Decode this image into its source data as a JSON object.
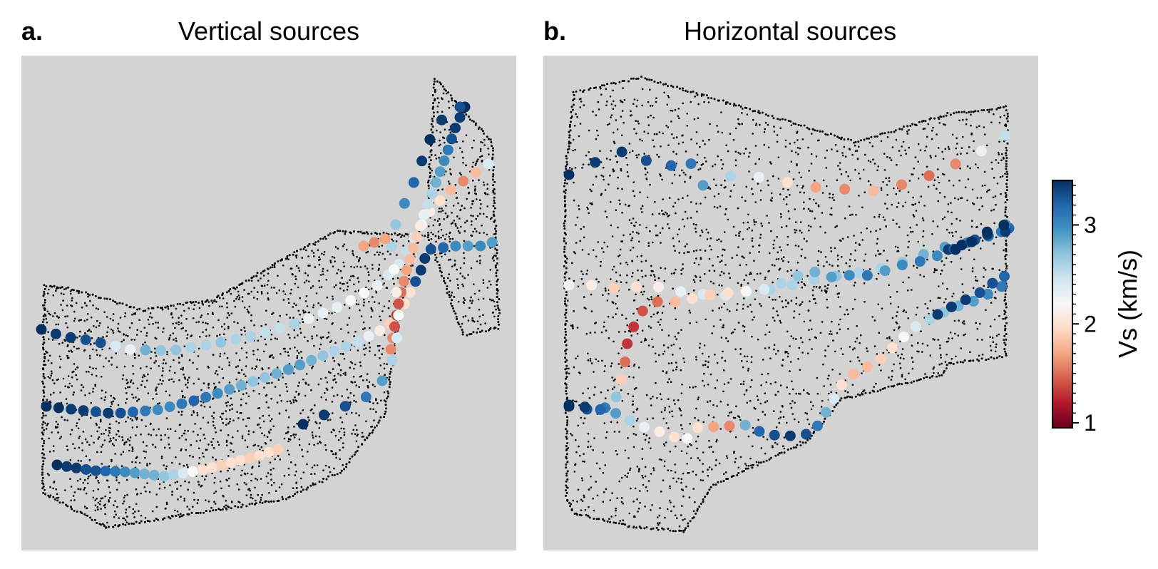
{
  "chart_data": [
    {
      "type": "scatter",
      "panel_label": "a.",
      "title": "Vertical sources",
      "background": "#d3d3d3",
      "station_color": "#000000",
      "colorbar": {
        "label": "Vs (km/s)",
        "cmap": "RdBu",
        "range": [
          0.95,
          3.45
        ],
        "ticks": [
          1,
          2,
          3
        ]
      },
      "series": [
        {
          "vs": [
            3.5,
            3.4,
            3.4,
            3.3,
            3.3,
            2.4,
            2.3,
            2.8,
            2.7,
            2.7,
            2.6,
            2.6,
            2.7,
            2.6,
            2.6,
            2.5,
            2.5,
            2.6,
            2.3,
            2.3,
            2.3,
            2.2,
            2.2,
            2.3,
            2.4,
            2.4,
            2.5,
            2.4,
            2.2,
            2.1,
            2.0,
            1.8,
            1.6,
            1.8,
            2.4
          ]
        },
        {
          "vs": [
            3.5,
            3.5,
            3.4,
            3.4,
            3.3,
            3.4,
            3.3,
            3.2,
            3.1,
            3.0,
            3.0,
            3.1,
            3.2,
            3.1,
            3.0,
            2.9,
            2.8,
            2.7,
            2.7,
            2.8,
            2.9,
            2.9,
            2.8,
            2.7,
            2.6,
            2.6,
            2.5,
            2.3,
            2.1,
            1.9,
            1.8,
            2.0,
            2.0,
            3.3,
            3.4,
            3.4,
            3.3,
            3.2,
            3.0,
            2.9,
            3.0,
            2.9
          ]
        },
        {
          "vs": [
            3.5,
            3.4,
            3.4,
            3.3,
            3.3,
            3.2,
            3.1,
            3.0,
            2.9,
            2.8,
            2.8,
            2.7,
            2.6,
            2.4,
            2.2,
            2.0,
            2.0,
            1.9,
            2.0,
            2.0,
            1.9,
            2.0,
            2.0,
            1.9
          ]
        },
        {
          "vs": [
            1.6,
            1.6,
            1.4,
            1.3,
            1.4,
            1.5,
            1.6,
            1.7,
            1.8,
            1.8,
            1.9,
            2.1,
            2.3,
            2.5,
            2.6,
            2.8,
            2.9,
            3.0,
            3.1,
            3.3,
            3.4,
            3.4,
            3.5
          ]
        },
        {
          "vs": [
            3.5,
            3.4,
            3.3,
            3.1,
            2.9,
            2.6,
            2.4,
            2.2,
            2.1,
            2.2,
            2.6,
            2.7,
            3.0,
            3.2,
            3.4,
            3.5,
            3.4,
            3.3
          ]
        },
        {
          "vs": [
            1.7,
            1.6,
            1.7
          ]
        }
      ]
    },
    {
      "type": "scatter",
      "panel_label": "b.",
      "title": "Horizontal sources",
      "background": "#d3d3d3",
      "station_color": "#000000",
      "colorbar": {
        "label": "Vs (km/s)",
        "cmap": "RdBu",
        "range": [
          0.95,
          3.45
        ],
        "ticks": [
          1,
          2,
          3
        ]
      },
      "series": [
        {
          "vs": [
            3.5,
            3.4,
            3.4,
            3.3,
            3.2,
            3.1,
            2.9,
            2.6,
            2.3,
            2.0,
            1.7,
            1.6,
            1.8,
            1.6,
            1.5,
            1.6,
            2.3,
            2.5
          ]
        },
        {
          "vs": [
            2.3,
            2.1,
            1.9,
            2.0,
            2.1,
            2.3,
            2.4,
            2.4,
            2.5,
            2.6,
            2.6,
            2.6,
            2.7,
            2.6,
            2.6,
            2.7,
            2.8,
            2.9,
            3.0,
            3.1,
            3.2
          ]
        },
        {
          "vs": [
            3.4,
            3.5,
            3.3,
            3.2,
            3.1,
            3.0
          ]
        },
        {
          "vs": [
            3.5,
            3.3,
            3.1,
            2.7,
            1.9,
            1.5,
            1.3,
            1.3,
            1.4,
            1.5,
            1.8,
            2.0,
            1.9,
            2.0,
            2.2,
            2.4,
            2.6,
            2.7,
            2.8,
            2.9,
            3.0,
            3.1,
            2.9,
            3.0,
            3.1,
            3.0,
            3.2,
            3.3,
            3.4,
            3.4,
            3.5,
            3.5,
            3.5,
            3.5
          ]
        },
        {
          "vs": [
            3.5,
            3.4,
            3.2,
            2.9,
            2.6,
            2.3,
            2.1,
            2.0,
            2.2,
            2.0,
            1.7,
            1.6,
            2.8,
            3.2,
            3.3,
            3.4,
            3.3,
            3.1,
            2.8,
            2.4,
            2.0,
            1.8,
            1.8,
            1.9,
            2.0,
            2.2,
            2.4,
            2.6,
            2.7,
            2.8,
            2.9,
            3.0,
            3.1,
            3.2,
            3.3,
            3.3,
            3.4,
            3.4,
            3.4
          ]
        }
      ]
    }
  ]
}
